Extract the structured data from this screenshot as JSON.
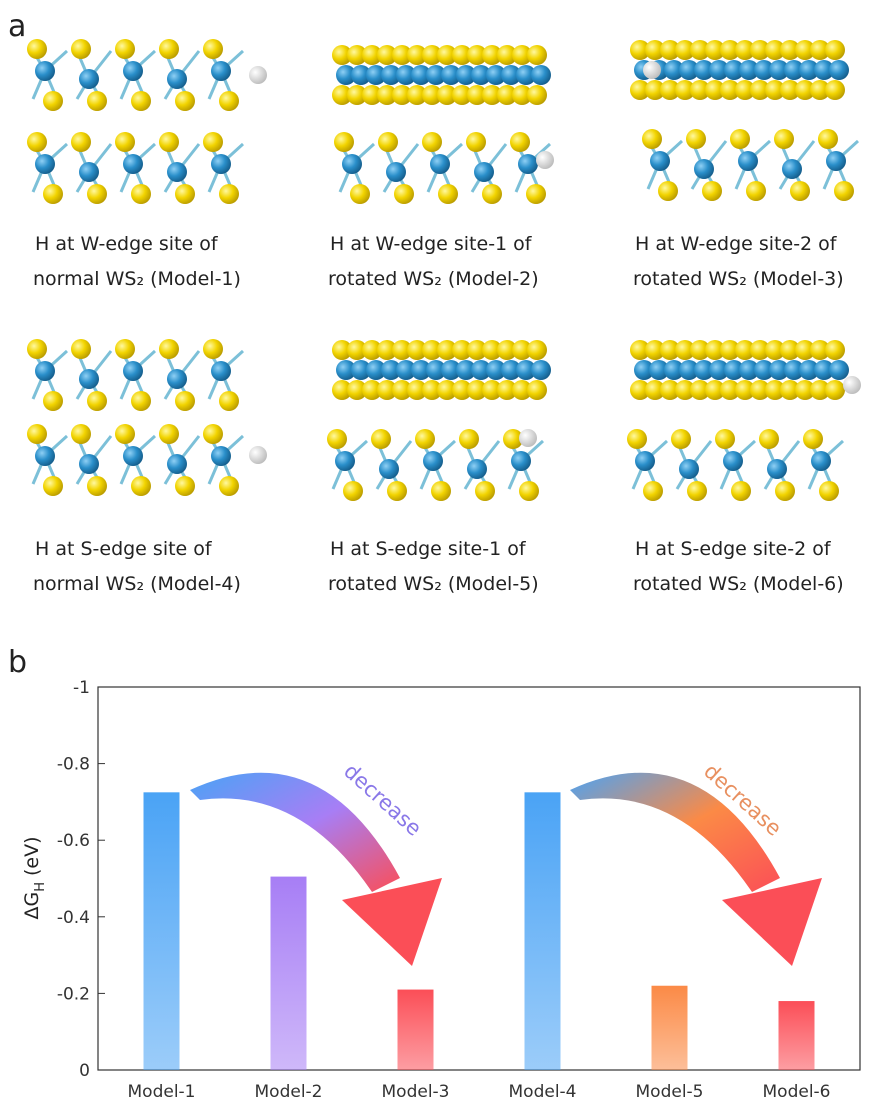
{
  "panel_labels": [
    "a",
    "b"
  ],
  "captions": [
    [
      "H at W-edge site  of",
      "normal WS₂ (Model-1)"
    ],
    [
      "H at W-edge site-1 of",
      "rotated WS₂ (Model-2)"
    ],
    [
      "H at W-edge site-2 of",
      "rotated WS₂ (Model-3)"
    ],
    [
      "H at S-edge site  of",
      "normal WS₂ (Model-4)"
    ],
    [
      "H at S-edge site-1 of",
      "rotated WS₂ (Model-5)"
    ],
    [
      "H at S-edge site-2 of",
      "rotated WS₂ (Model-6)"
    ]
  ],
  "chart_data": {
    "type": "bar",
    "ylabel": [
      "ΔG",
      "H",
      " (eV)"
    ],
    "categories": [
      "Model-1",
      "Model-2",
      "Model-3",
      "Model-4",
      "Model-5",
      "Model-6"
    ],
    "values": [
      -0.725,
      -0.505,
      -0.21,
      -0.725,
      -0.22,
      -0.18
    ],
    "colors": [
      "#4aa3f5",
      "#a77ef5",
      "#fb4e57",
      "#4aa3f5",
      "#fb8a46",
      "#fb4e57"
    ],
    "ylim": [
      0,
      -1
    ],
    "yticks": [
      0,
      -0.2,
      -0.4,
      -0.6,
      -0.8,
      -1
    ],
    "annotations": [
      "decrease",
      "decrease"
    ]
  }
}
